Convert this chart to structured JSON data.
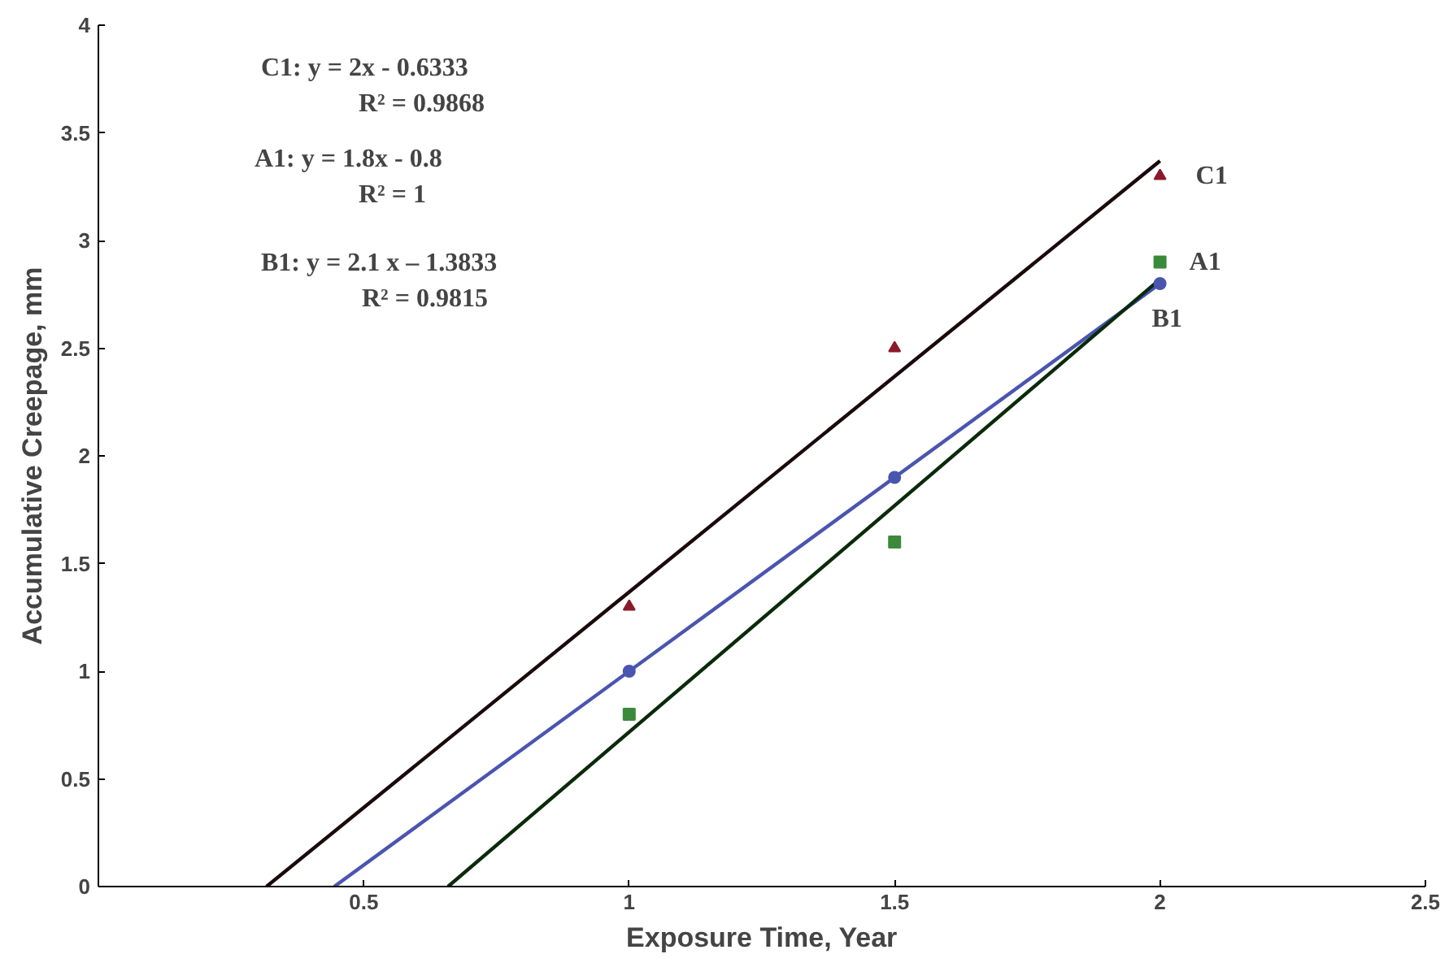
{
  "chart_data": {
    "type": "scatter",
    "xlabel": "Exposure Time, Year",
    "ylabel": "Accumulative Creepage, mm",
    "xlim": [
      0,
      2.5
    ],
    "xticks": [
      {
        "value": 0,
        "label": null
      },
      0.5,
      1,
      1.5,
      2,
      2.5
    ],
    "ylim": [
      0,
      4
    ],
    "yticks": [
      0,
      0.5,
      1,
      1.5,
      2,
      2.5,
      3,
      3.5,
      4
    ],
    "grid": false,
    "series": [
      {
        "type": "line",
        "color": "#1a0a0a",
        "x": [
          0.3167,
          2
        ],
        "values": [
          0,
          3.37
        ],
        "marker": "none"
      },
      {
        "type": "line",
        "color": "#4a55b0",
        "x": [
          0.4444,
          2
        ],
        "values": [
          0,
          2.8
        ],
        "marker": "none"
      },
      {
        "type": "line",
        "color": "#0a2a0a",
        "x": [
          0.6587,
          2
        ],
        "values": [
          0,
          2.82
        ],
        "marker": "none"
      },
      {
        "name": "C1",
        "color": "#8b1a2a",
        "x": [
          1,
          1.5,
          2
        ],
        "values": [
          1.3,
          2.5,
          3.3
        ],
        "marker": "triangle"
      },
      {
        "name": "B1",
        "color": "#4a55b0",
        "x": [
          1,
          1.5,
          2
        ],
        "values": [
          1.0,
          1.9,
          2.8
        ],
        "marker": "circle"
      },
      {
        "name": "A1",
        "color": "#3a8a3a",
        "x": [
          1,
          1.5,
          2
        ],
        "values": [
          0.8,
          1.6,
          2.9
        ],
        "marker": "square"
      }
    ],
    "annotations": [
      "C1:  y = 2x - 0.6333",
      "R² = 0.9868",
      "A1:  y = 1.8x - 0.8",
      "R² = 1",
      "B1:  y = 2.1 x – 1.3833",
      "R² = 0.9815"
    ]
  }
}
